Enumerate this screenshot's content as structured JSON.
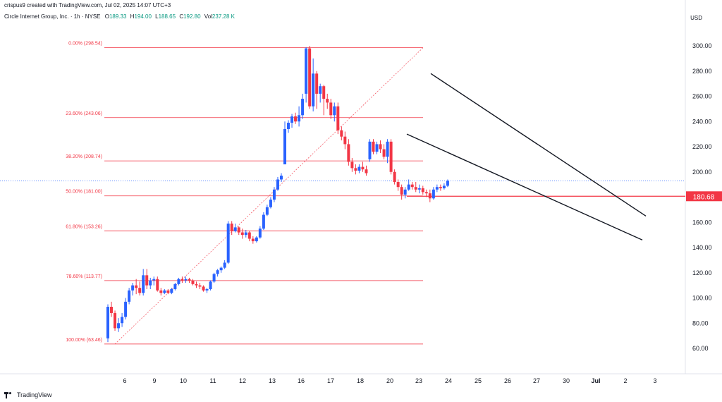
{
  "header": {
    "credit": "crispus9 created with TradingView.com, Jul 02, 2025 14:07 UTC+3"
  },
  "legend": {
    "symbol": "Circle Internet Group, Inc. · 1h · NYSE",
    "o_label": "O",
    "o": "189.33",
    "h_label": "H",
    "h": "194.00",
    "l_label": "L",
    "l": "188.65",
    "c_label": "C",
    "c": "192.80",
    "vol_label": "Vol",
    "vol": "237.28 K"
  },
  "currency": "USD",
  "footer": {
    "brand": "TradingView"
  },
  "colors": {
    "up": "#2962ff",
    "down": "#f23645",
    "fib": "#f23645",
    "trend": "#131722",
    "price_tag": "#f23645"
  },
  "chart_data": {
    "type": "candlestick",
    "y_ticks": [
      "300.00",
      "280.00",
      "260.00",
      "240.00",
      "220.00",
      "200.00",
      "160.00",
      "140.00",
      "120.00",
      "100.00",
      "80.00",
      "60.00"
    ],
    "ylim": [
      55,
      312
    ],
    "x_ticks": [
      "6",
      "9",
      "10",
      "11",
      "12",
      "13",
      "16",
      "17",
      "18",
      "20",
      "23",
      "24",
      "25",
      "26",
      "27",
      "30",
      "Jul",
      "2",
      "3"
    ],
    "last_price_label": "180.68",
    "last_price": 180.68,
    "current_price": 192.8,
    "fib_levels": [
      {
        "label": "0.00% (298.54)",
        "value": 298.54
      },
      {
        "label": "23.60% (243.06)",
        "value": 243.06
      },
      {
        "label": "38.20% (208.74)",
        "value": 208.74
      },
      {
        "label": "50.00% (181.00)",
        "value": 181.0
      },
      {
        "label": "61.80% (153.26)",
        "value": 153.26
      },
      {
        "label": "78.60% (113.77)",
        "value": 113.77
      },
      {
        "label": "100.00% (63.46)",
        "value": 63.46
      }
    ],
    "trendlines": [
      {
        "from": [
          23.4,
          278
        ],
        "to": [
          39.6,
          165
        ]
      },
      {
        "from": [
          22.2,
          230
        ],
        "to": [
          39.2,
          146
        ]
      }
    ],
    "fib_anchor": {
      "from": [
        2.0,
        63.46
      ],
      "to": [
        23.2,
        298.54
      ]
    },
    "candles": [
      [
        68,
        95,
        65,
        93
      ],
      [
        93,
        97,
        85,
        88
      ],
      [
        88,
        90,
        74,
        76
      ],
      [
        76,
        84,
        73,
        80
      ],
      [
        80,
        88,
        77,
        85
      ],
      [
        85,
        100,
        83,
        97
      ],
      [
        97,
        108,
        95,
        106
      ],
      [
        106,
        112,
        102,
        110
      ],
      [
        110,
        115,
        103,
        108
      ],
      [
        108,
        113,
        102,
        104
      ],
      [
        104,
        123,
        102,
        118
      ],
      [
        118,
        123,
        107,
        110
      ],
      [
        110,
        116,
        107,
        114
      ],
      [
        114,
        117,
        110,
        115
      ],
      [
        115,
        117,
        105,
        106
      ],
      [
        106,
        108,
        102,
        104
      ],
      [
        104,
        107,
        103,
        106
      ],
      [
        106,
        107,
        103,
        104
      ],
      [
        104,
        108,
        103,
        107
      ],
      [
        107,
        112,
        106,
        111
      ],
      [
        111,
        116,
        110,
        115
      ],
      [
        115,
        117,
        112,
        114
      ],
      [
        114,
        117,
        112,
        115
      ],
      [
        115,
        116,
        112,
        114
      ],
      [
        114,
        115,
        110,
        111
      ],
      [
        111,
        113,
        108,
        110
      ],
      [
        110,
        112,
        107,
        109
      ],
      [
        109,
        110,
        105,
        106
      ],
      [
        106,
        108,
        104,
        107
      ],
      [
        107,
        114,
        106,
        113
      ],
      [
        113,
        120,
        112,
        119
      ],
      [
        119,
        123,
        117,
        122
      ],
      [
        122,
        125,
        120,
        124
      ],
      [
        124,
        130,
        123,
        128
      ],
      [
        128,
        161,
        127,
        159
      ],
      [
        159,
        161,
        150,
        153
      ],
      [
        153,
        159,
        152,
        156
      ],
      [
        156,
        157,
        150,
        152
      ],
      [
        152,
        155,
        147,
        150
      ],
      [
        150,
        154,
        148,
        152
      ],
      [
        152,
        153,
        145,
        147
      ],
      [
        147,
        149,
        143,
        145
      ],
      [
        145,
        149,
        144,
        148
      ],
      [
        148,
        157,
        147,
        155
      ],
      [
        155,
        168,
        154,
        166
      ],
      [
        166,
        174,
        165,
        172
      ],
      [
        172,
        180,
        171,
        178
      ],
      [
        178,
        188,
        176,
        186
      ],
      [
        186,
        196,
        185,
        194
      ],
      [
        194,
        199,
        192,
        197
      ],
      [
        206,
        240,
        206,
        234
      ],
      [
        234,
        241,
        231,
        239
      ],
      [
        239,
        246,
        235,
        244
      ],
      [
        244,
        247,
        238,
        240
      ],
      [
        240,
        252,
        236,
        245
      ],
      [
        245,
        262,
        242,
        258
      ],
      [
        262,
        299,
        255,
        298
      ],
      [
        298,
        300,
        250,
        252
      ],
      [
        252,
        290,
        248,
        278
      ],
      [
        278,
        280,
        250,
        262
      ],
      [
        262,
        270,
        255,
        268
      ],
      [
        268,
        269,
        245,
        258
      ],
      [
        258,
        262,
        250,
        255
      ],
      [
        255,
        258,
        242,
        245
      ],
      [
        245,
        255,
        240,
        252
      ],
      [
        252,
        255,
        230,
        233
      ],
      [
        233,
        236,
        225,
        228
      ],
      [
        228,
        232,
        218,
        222
      ],
      [
        222,
        226,
        205,
        208
      ],
      [
        208,
        211,
        200,
        203
      ],
      [
        203,
        206,
        198,
        201
      ],
      [
        201,
        206,
        199,
        204
      ],
      [
        204,
        208,
        200,
        202
      ],
      [
        202,
        205,
        197,
        199
      ],
      [
        210,
        226,
        208,
        224
      ],
      [
        224,
        226,
        214,
        216
      ],
      [
        216,
        224,
        214,
        222
      ],
      [
        222,
        225,
        215,
        218
      ],
      [
        218,
        222,
        210,
        212
      ],
      [
        212,
        226,
        207,
        224
      ],
      [
        224,
        226,
        198,
        200
      ],
      [
        200,
        202,
        190,
        192
      ],
      [
        192,
        194,
        185,
        188
      ],
      [
        188,
        190,
        178,
        182
      ],
      [
        182,
        188,
        179,
        186
      ],
      [
        186,
        194,
        185,
        190
      ],
      [
        190,
        192,
        186,
        188
      ],
      [
        188,
        192,
        184,
        186
      ],
      [
        186,
        190,
        183,
        187
      ],
      [
        187,
        189,
        182,
        184
      ],
      [
        184,
        186,
        180,
        183
      ],
      [
        183,
        186,
        176,
        179
      ],
      [
        179,
        188,
        178,
        186
      ],
      [
        186,
        190,
        184,
        188
      ],
      [
        188,
        190,
        185,
        187
      ],
      [
        187,
        191,
        186,
        189
      ],
      [
        189,
        194,
        188,
        193
      ]
    ]
  }
}
